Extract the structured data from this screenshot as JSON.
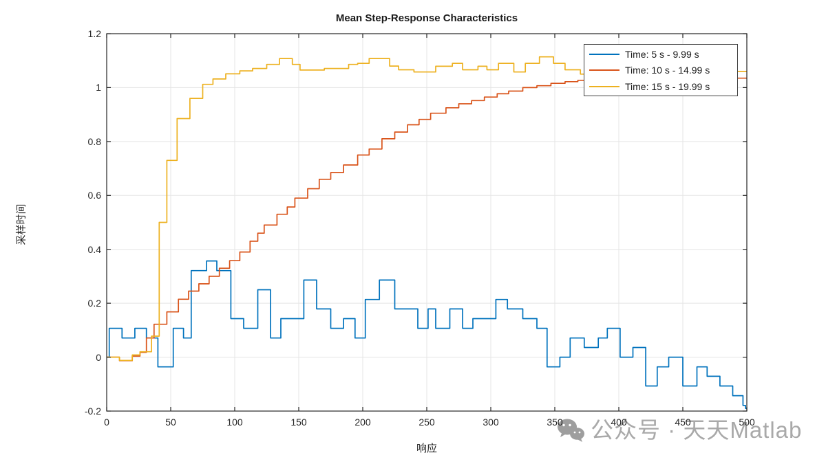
{
  "figure": {
    "title": "Mean Step-Response Characteristics",
    "xlabel": "响应",
    "ylabel": "采样时间"
  },
  "legend": {
    "entries": [
      {
        "label": "Time: 5 s - 9.99 s",
        "color": "#0072BD"
      },
      {
        "label": "Time: 10 s - 14.99 s",
        "color": "#D95319"
      },
      {
        "label": "Time: 15 s - 19.99 s",
        "color": "#EDB120"
      }
    ]
  },
  "watermark": {
    "icon": "wechat-icon",
    "text": "公众号 · 天天Matlab",
    "color": "#a9a9a9"
  },
  "chart_data": {
    "type": "line",
    "subtype": "stairs",
    "title": "Mean Step-Response Characteristics",
    "xlabel": "响应",
    "ylabel": "采样时间",
    "xlim": [
      0,
      500
    ],
    "ylim": [
      -0.2,
      1.2
    ],
    "xticks": [
      0,
      50,
      100,
      150,
      200,
      250,
      300,
      350,
      400,
      450,
      500
    ],
    "yticks": [
      -0.2,
      0,
      0.2,
      0.4,
      0.6,
      0.8,
      1,
      1.2
    ],
    "grid": true,
    "grid_color": "#e5e5e5",
    "axis_color": "#262626",
    "legend_position": "northeast",
    "series": [
      {
        "name": "Time: 5 s - 9.99 s",
        "color": "#0072BD",
        "points": [
          [
            0,
            0
          ],
          [
            2,
            0.107
          ],
          [
            12,
            0.071
          ],
          [
            22,
            0.107
          ],
          [
            31,
            0.071
          ],
          [
            40,
            -0.036
          ],
          [
            52,
            0.107
          ],
          [
            60,
            0.071
          ],
          [
            66,
            0.321
          ],
          [
            78,
            0.357
          ],
          [
            86,
            0.321
          ],
          [
            97,
            0.143
          ],
          [
            107,
            0.107
          ],
          [
            118,
            0.25
          ],
          [
            128,
            0.071
          ],
          [
            136,
            0.143
          ],
          [
            154,
            0.286
          ],
          [
            164,
            0.179
          ],
          [
            175,
            0.107
          ],
          [
            185,
            0.143
          ],
          [
            194,
            0.071
          ],
          [
            202,
            0.214
          ],
          [
            213,
            0.286
          ],
          [
            225,
            0.179
          ],
          [
            243,
            0.107
          ],
          [
            251,
            0.179
          ],
          [
            257,
            0.107
          ],
          [
            268,
            0.179
          ],
          [
            278,
            0.107
          ],
          [
            286,
            0.143
          ],
          [
            304,
            0.214
          ],
          [
            313,
            0.179
          ],
          [
            325,
            0.143
          ],
          [
            336,
            0.107
          ],
          [
            344,
            -0.036
          ],
          [
            354,
            0
          ],
          [
            362,
            0.071
          ],
          [
            373,
            0.036
          ],
          [
            384,
            0.071
          ],
          [
            391,
            0.107
          ],
          [
            401,
            0
          ],
          [
            411,
            0.036
          ],
          [
            421,
            -0.107
          ],
          [
            430,
            -0.036
          ],
          [
            439,
            0
          ],
          [
            450,
            -0.107
          ],
          [
            461,
            -0.036
          ],
          [
            469,
            -0.071
          ],
          [
            479,
            -0.107
          ],
          [
            489,
            -0.143
          ],
          [
            497,
            -0.179
          ],
          [
            499,
            -0.19
          ]
        ]
      },
      {
        "name": "Time: 10 s - 14.99 s",
        "color": "#D95319",
        "points": [
          [
            0,
            0
          ],
          [
            10,
            -0.013
          ],
          [
            20,
            0.004
          ],
          [
            26,
            0.018
          ],
          [
            31,
            0.071
          ],
          [
            37,
            0.122
          ],
          [
            47,
            0.168
          ],
          [
            56,
            0.215
          ],
          [
            64,
            0.245
          ],
          [
            72,
            0.272
          ],
          [
            80,
            0.3
          ],
          [
            88,
            0.33
          ],
          [
            96,
            0.358
          ],
          [
            104,
            0.39
          ],
          [
            112,
            0.43
          ],
          [
            118,
            0.46
          ],
          [
            123,
            0.49
          ],
          [
            133,
            0.53
          ],
          [
            141,
            0.557
          ],
          [
            147,
            0.59
          ],
          [
            157,
            0.625
          ],
          [
            166,
            0.66
          ],
          [
            175,
            0.685
          ],
          [
            185,
            0.713
          ],
          [
            196,
            0.75
          ],
          [
            205,
            0.772
          ],
          [
            215,
            0.81
          ],
          [
            225,
            0.835
          ],
          [
            235,
            0.862
          ],
          [
            244,
            0.882
          ],
          [
            253,
            0.905
          ],
          [
            265,
            0.925
          ],
          [
            275,
            0.94
          ],
          [
            285,
            0.952
          ],
          [
            295,
            0.965
          ],
          [
            305,
            0.977
          ],
          [
            314,
            0.987
          ],
          [
            325,
            1
          ],
          [
            336,
            1.007
          ],
          [
            347,
            1.016
          ],
          [
            358,
            1.022
          ],
          [
            368,
            1.027
          ],
          [
            381,
            1.031
          ],
          [
            430,
            1.035
          ],
          [
            500,
            1.035
          ]
        ]
      },
      {
        "name": "Time: 15 s - 19.99 s",
        "color": "#EDB120",
        "points": [
          [
            0,
            0
          ],
          [
            10,
            -0.012
          ],
          [
            20,
            0.008
          ],
          [
            26,
            0.02
          ],
          [
            35,
            0.078
          ],
          [
            41,
            0.5
          ],
          [
            47,
            0.73
          ],
          [
            55,
            0.885
          ],
          [
            65,
            0.96
          ],
          [
            75,
            1.012
          ],
          [
            83,
            1.032
          ],
          [
            93,
            1.051
          ],
          [
            104,
            1.062
          ],
          [
            114,
            1.071
          ],
          [
            125,
            1.086
          ],
          [
            135,
            1.108
          ],
          [
            145,
            1.086
          ],
          [
            151,
            1.065
          ],
          [
            170,
            1.071
          ],
          [
            189,
            1.086
          ],
          [
            196,
            1.09
          ],
          [
            205,
            1.108
          ],
          [
            221,
            1.08
          ],
          [
            228,
            1.066
          ],
          [
            240,
            1.058
          ],
          [
            257,
            1.079
          ],
          [
            270,
            1.09
          ],
          [
            278,
            1.066
          ],
          [
            290,
            1.079
          ],
          [
            297,
            1.066
          ],
          [
            306,
            1.09
          ],
          [
            318,
            1.058
          ],
          [
            327,
            1.09
          ],
          [
            338,
            1.114
          ],
          [
            349,
            1.09
          ],
          [
            358,
            1.066
          ],
          [
            370,
            1.05
          ],
          [
            381,
            1.06
          ],
          [
            500,
            1.06
          ]
        ]
      }
    ]
  }
}
